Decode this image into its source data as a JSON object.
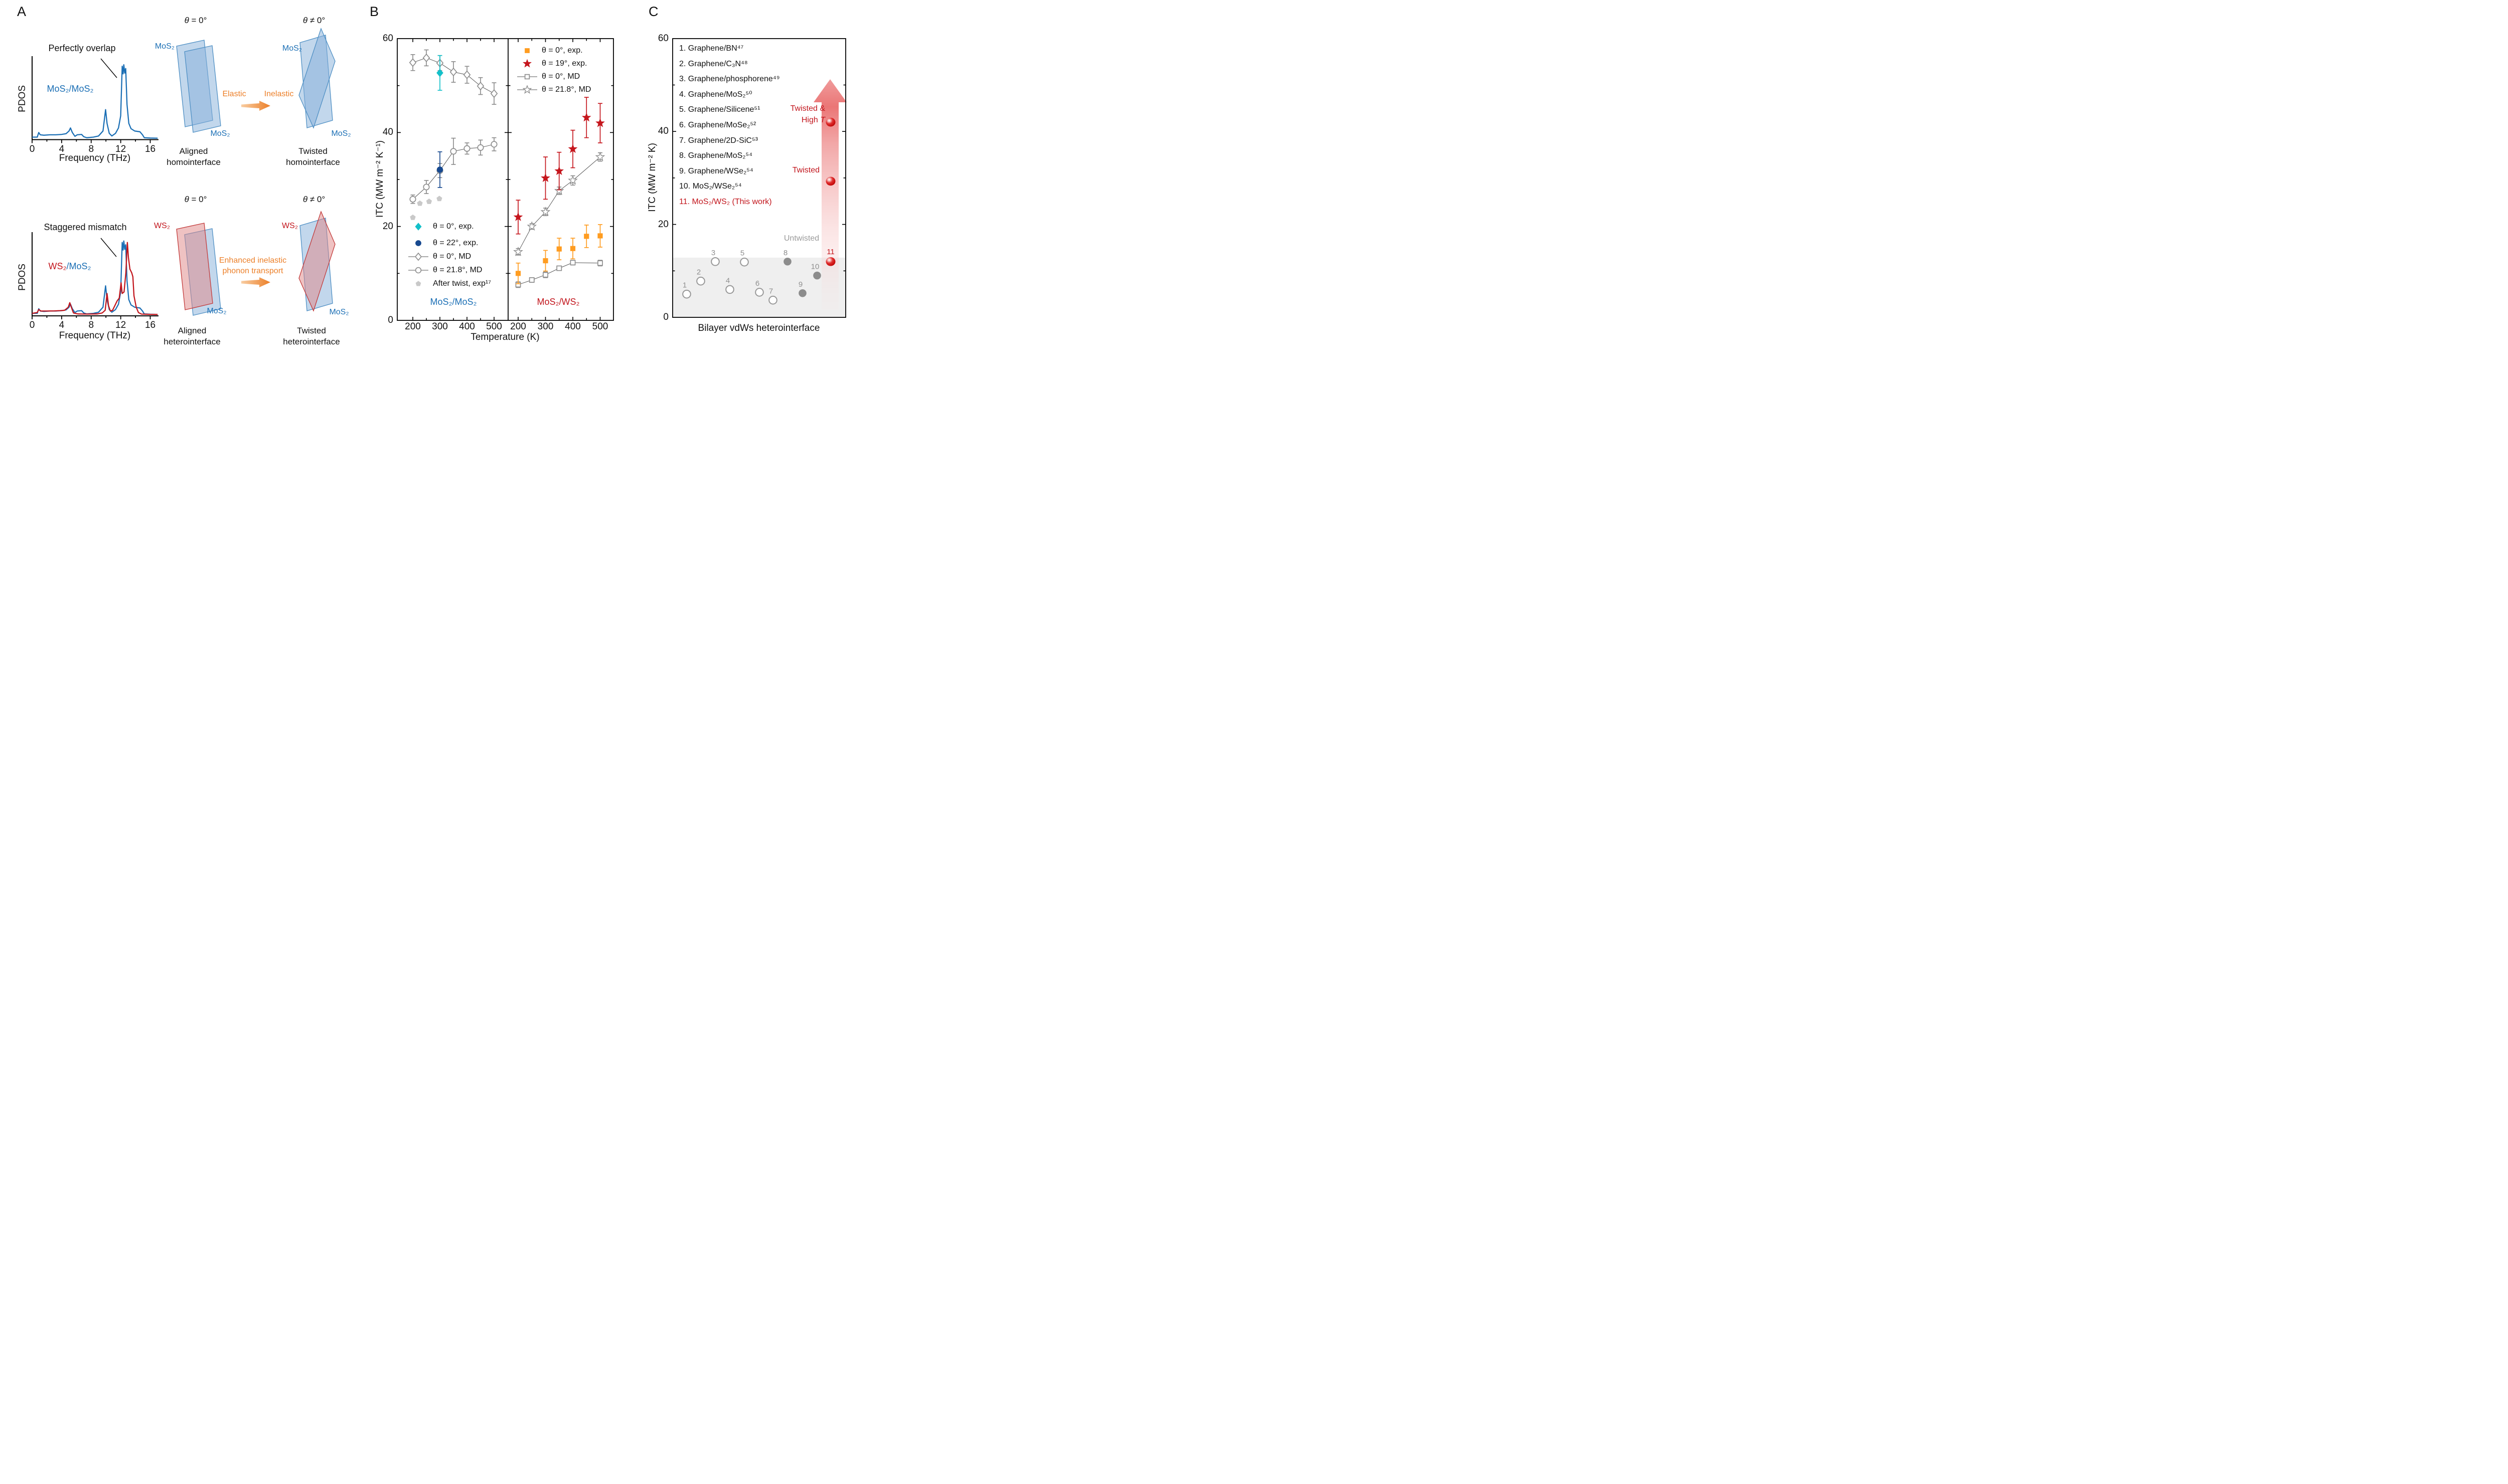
{
  "colors": {
    "mos2_blue": "#1B6FB5",
    "ws2_red": "#C2151C",
    "orange_accent": "#EC7F28",
    "cyan_exp": "#13C0C9",
    "navy_exp": "#17498F",
    "orange_exp": "#FF9C20",
    "red_exp": "#C5161D",
    "gray_marker": "#8E8E8E",
    "light_gray_pentagon": "#C9C9C9",
    "untwisted_gray": "#9A9A9A",
    "band_gray": "#EFEFEF",
    "layer_blue_fill": "rgba(133,176,217,0.50)",
    "layer_blue_stroke": "#4E8FC4",
    "layer_red_fill": "rgba(224,134,134,0.50)",
    "layer_red_stroke": "#C23A3A"
  },
  "panels": {
    "a": {
      "label": "A",
      "theta_aligned": {
        "sym": "θ",
        "rest": " = 0°"
      },
      "theta_twisted": {
        "sym": "θ",
        "rest": " ≠ 0°"
      },
      "elastic": "Elastic",
      "inelastic": "Inelastic",
      "enhanced": [
        "Enhanced inelastic",
        "phonon transport"
      ],
      "layer_mos2": "MoS₂",
      "layer_ws2": "WS₂",
      "pdos_hetero_label": {
        "ws2": "WS₂",
        "rest": "/MoS₂"
      },
      "captions": {
        "aligned_homo": [
          "Aligned",
          "homointerface"
        ],
        "twisted_homo": [
          "Twisted",
          "homointerface"
        ],
        "aligned_hetero": [
          "Aligned",
          "heterointerface"
        ],
        "twisted_hetero": [
          "Twisted",
          "heterointerface"
        ]
      }
    },
    "b": {
      "label": "B"
    },
    "c": {
      "label": "C",
      "items": [
        "1. Graphene/BN⁴⁷",
        "2. Graphene/C₃N⁴⁸",
        "3. Graphene/phosphorene⁴⁹",
        "4. Graphene/MoS₂⁵⁰",
        "5. Graphene/Silicene⁵¹",
        "6. Graphene/MoSe₂⁵²",
        "7. Graphene/2D-SiC⁵³",
        "8. Graphene/MoS₂⁵⁴",
        "9. Graphene/WSe₂⁵⁴",
        "10. MoS₂/WSe₂⁵⁴",
        "11. MoS₂/WS₂ (This work)"
      ]
    }
  },
  "chart_data": [
    {
      "id": "pdos-homointerface",
      "type": "line",
      "xlabel": "Frequency (THz)",
      "ylabel": "PDOS",
      "xlim": [
        0,
        17
      ],
      "xticks": [
        0,
        4,
        8,
        12,
        16
      ],
      "annotation": "Perfectly overlap",
      "series": [
        {
          "name": "MoS₂/MoS₂",
          "color": "#1B6FB5",
          "points": [
            [
              0,
              0.02
            ],
            [
              0.7,
              0.02
            ],
            [
              0.9,
              0.08
            ],
            [
              1.1,
              0.05
            ],
            [
              1.6,
              0.045
            ],
            [
              2.4,
              0.05
            ],
            [
              3.2,
              0.05
            ],
            [
              4.0,
              0.055
            ],
            [
              4.6,
              0.065
            ],
            [
              5.0,
              0.1
            ],
            [
              5.2,
              0.14
            ],
            [
              5.45,
              0.08
            ],
            [
              5.8,
              0.03
            ],
            [
              6.1,
              0.05
            ],
            [
              6.7,
              0.055
            ],
            [
              7.0,
              0.025
            ],
            [
              7.4,
              0.012
            ],
            [
              8.3,
              0.02
            ],
            [
              9.0,
              0.035
            ],
            [
              9.6,
              0.1
            ],
            [
              9.95,
              0.38
            ],
            [
              10.15,
              0.2
            ],
            [
              10.45,
              0.07
            ],
            [
              10.8,
              0.035
            ],
            [
              11.3,
              0.07
            ],
            [
              11.7,
              0.14
            ],
            [
              12.0,
              0.3
            ],
            [
              12.2,
              0.95
            ],
            [
              12.32,
              0.85
            ],
            [
              12.42,
              0.97
            ],
            [
              12.55,
              0.86
            ],
            [
              12.68,
              0.92
            ],
            [
              12.85,
              0.45
            ],
            [
              13.1,
              0.2
            ],
            [
              13.4,
              0.13
            ],
            [
              13.9,
              0.1
            ],
            [
              14.6,
              0.09
            ],
            [
              14.95,
              0.05
            ],
            [
              15.2,
              0.012
            ],
            [
              16.0,
              0.008
            ],
            [
              17,
              0.006
            ]
          ]
        }
      ]
    },
    {
      "id": "pdos-heterointerface",
      "type": "line",
      "xlabel": "Frequency (THz)",
      "ylabel": "PDOS",
      "xlim": [
        0,
        17
      ],
      "xticks": [
        0,
        4,
        8,
        12,
        16
      ],
      "annotation": "Staggered mismatch",
      "series": [
        {
          "name": "MoS₂",
          "color": "#1B6FB5",
          "points": [
            [
              0,
              0.02
            ],
            [
              0.7,
              0.02
            ],
            [
              0.9,
              0.08
            ],
            [
              1.1,
              0.05
            ],
            [
              1.6,
              0.045
            ],
            [
              2.4,
              0.05
            ],
            [
              3.2,
              0.05
            ],
            [
              4.0,
              0.055
            ],
            [
              4.6,
              0.065
            ],
            [
              5.0,
              0.1
            ],
            [
              5.2,
              0.14
            ],
            [
              5.45,
              0.08
            ],
            [
              5.8,
              0.03
            ],
            [
              6.1,
              0.05
            ],
            [
              6.7,
              0.055
            ],
            [
              7.0,
              0.025
            ],
            [
              7.4,
              0.012
            ],
            [
              8.3,
              0.02
            ],
            [
              9.0,
              0.035
            ],
            [
              9.6,
              0.1
            ],
            [
              9.95,
              0.38
            ],
            [
              10.15,
              0.2
            ],
            [
              10.45,
              0.07
            ],
            [
              10.8,
              0.035
            ],
            [
              11.3,
              0.07
            ],
            [
              11.7,
              0.14
            ],
            [
              12.0,
              0.3
            ],
            [
              12.2,
              0.95
            ],
            [
              12.32,
              0.85
            ],
            [
              12.42,
              0.97
            ],
            [
              12.55,
              0.86
            ],
            [
              12.68,
              0.92
            ],
            [
              12.85,
              0.45
            ],
            [
              13.1,
              0.2
            ],
            [
              13.4,
              0.13
            ],
            [
              13.9,
              0.1
            ],
            [
              14.6,
              0.09
            ],
            [
              14.95,
              0.05
            ],
            [
              15.2,
              0.012
            ],
            [
              16.0,
              0.008
            ],
            [
              17,
              0.006
            ]
          ]
        },
        {
          "name": "WS₂",
          "color": "#C2151C",
          "points": [
            [
              0,
              0.02
            ],
            [
              0.7,
              0.03
            ],
            [
              0.9,
              0.07
            ],
            [
              1.2,
              0.05
            ],
            [
              2.0,
              0.05
            ],
            [
              3.0,
              0.052
            ],
            [
              3.8,
              0.055
            ],
            [
              4.4,
              0.06
            ],
            [
              4.9,
              0.1
            ],
            [
              5.1,
              0.16
            ],
            [
              5.35,
              0.09
            ],
            [
              5.6,
              0.025
            ],
            [
              6.2,
              0.012
            ],
            [
              7.5,
              0.01
            ],
            [
              8.8,
              0.012
            ],
            [
              9.5,
              0.025
            ],
            [
              9.9,
              0.06
            ],
            [
              10.15,
              0.28
            ],
            [
              10.35,
              0.12
            ],
            [
              10.6,
              0.05
            ],
            [
              10.9,
              0.06
            ],
            [
              11.2,
              0.12
            ],
            [
              11.5,
              0.18
            ],
            [
              11.8,
              0.22
            ],
            [
              12.05,
              0.42
            ],
            [
              12.2,
              0.28
            ],
            [
              12.45,
              0.3
            ],
            [
              12.7,
              0.55
            ],
            [
              12.9,
              0.95
            ],
            [
              13.05,
              0.75
            ],
            [
              13.25,
              0.6
            ],
            [
              13.5,
              0.55
            ],
            [
              13.65,
              0.5
            ],
            [
              13.8,
              0.25
            ],
            [
              14.1,
              0.1
            ],
            [
              14.4,
              0.03
            ],
            [
              14.8,
              0.01
            ],
            [
              16,
              0.006
            ],
            [
              17,
              0.005
            ]
          ]
        }
      ]
    },
    {
      "id": "itc-vs-temperature-mos2-mos2",
      "type": "scatter",
      "title": "MoS₂/MoS₂",
      "xlabel": "Temperature (K)",
      "ylabel": "ITC (MW m⁻² K⁻¹)",
      "xlim": [
        148,
        552
      ],
      "ylim": [
        0,
        60
      ],
      "xticks": [
        200,
        300,
        400,
        500
      ],
      "yticks": [
        0,
        20,
        40,
        60
      ],
      "series": [
        {
          "label": "θ = 0°, exp.",
          "marker": "diamond",
          "fill": "solid",
          "color": "#13C0C9",
          "line": false,
          "x": [
            300
          ],
          "y": [
            52.7
          ],
          "err": [
            3.7
          ]
        },
        {
          "label": "θ = 22°, exp.",
          "marker": "circle",
          "fill": "solid",
          "color": "#17498F",
          "line": false,
          "x": [
            300
          ],
          "y": [
            32.1
          ],
          "err": [
            3.8
          ]
        },
        {
          "label": "θ = 0°, MD",
          "marker": "diamond",
          "fill": "open",
          "color": "#8E8E8E",
          "line": true,
          "x": [
            200,
            250,
            300,
            350,
            400,
            450,
            500
          ],
          "y": [
            54.9,
            55.9,
            54.8,
            52.9,
            52.3,
            49.9,
            48.3
          ],
          "err": [
            1.7,
            1.7,
            1.6,
            2.2,
            1.8,
            1.8,
            2.3
          ]
        },
        {
          "label": "θ = 21.8°, MD",
          "marker": "circle",
          "fill": "open",
          "color": "#8E8E8E",
          "line": true,
          "x": [
            200,
            250,
            300,
            350,
            400,
            450,
            500
          ],
          "y": [
            25.8,
            28.4,
            31.9,
            36.0,
            36.6,
            36.8,
            37.5
          ],
          "err": [
            0.9,
            1.4,
            1.5,
            2.8,
            1.2,
            1.6,
            1.4
          ]
        },
        {
          "label": "After twist, exp¹⁷",
          "marker": "pentagon",
          "fill": "solid",
          "color": "#C9C9C9",
          "line": false,
          "x": [
            200,
            226,
            260,
            298
          ],
          "y": [
            21.9,
            24.9,
            25.3,
            25.9
          ],
          "err": null
        }
      ]
    },
    {
      "id": "itc-vs-temperature-mos2-ws2",
      "type": "scatter",
      "title": "MoS₂/WS₂",
      "xlabel": "Temperature (K)",
      "ylabel": "ITC (MW m⁻² K⁻¹)",
      "xlim": [
        148,
        552
      ],
      "ylim": [
        0,
        60
      ],
      "xticks": [
        200,
        300,
        400,
        500
      ],
      "yticks": [
        0,
        20,
        40,
        60
      ],
      "series": [
        {
          "label": "θ = 0°, exp.",
          "marker": "square",
          "fill": "solid",
          "color": "#FF9C20",
          "line": false,
          "x": [
            200,
            300,
            350,
            400,
            450,
            500
          ],
          "y": [
            10.0,
            12.7,
            15.2,
            15.3,
            17.9,
            18.0
          ],
          "err": [
            2.2,
            2.2,
            2.3,
            2.2,
            2.4,
            2.4
          ]
        },
        {
          "label": "θ = 19°, exp.",
          "marker": "star",
          "fill": "solid",
          "color": "#C5161D",
          "line": false,
          "x": [
            200,
            300,
            350,
            400,
            450,
            500
          ],
          "y": [
            22.0,
            30.3,
            31.8,
            36.5,
            43.2,
            42.0
          ],
          "err": [
            3.6,
            4.5,
            4.0,
            4.0,
            4.3,
            4.2
          ]
        },
        {
          "label": "θ = 0°, MD",
          "marker": "square",
          "fill": "open",
          "color": "#8E8E8E",
          "line": true,
          "x": [
            200,
            250,
            300,
            350,
            400,
            500
          ],
          "y": [
            7.6,
            8.6,
            9.7,
            11.1,
            12.3,
            12.2
          ],
          "err": [
            0.6,
            0.5,
            0.6,
            0.4,
            0.5,
            0.6
          ]
        },
        {
          "label": "θ = 21.8°, MD",
          "marker": "star",
          "fill": "open",
          "color": "#8E8E8E",
          "line": true,
          "x": [
            200,
            250,
            300,
            350,
            400,
            500
          ],
          "y": [
            14.6,
            20.0,
            23.1,
            27.6,
            29.8,
            34.8
          ],
          "err": [
            0.7,
            0.6,
            0.8,
            0.8,
            1.0,
            0.9
          ]
        }
      ]
    },
    {
      "id": "itc-ranking-bilayer-interfaces",
      "type": "scatter",
      "xlabel": "Bilayer vdWs heterointerface",
      "ylabel": "ITC (MW m⁻² K)",
      "ylim": [
        0,
        60
      ],
      "yticks": [
        0,
        20,
        40,
        60
      ],
      "shaded_band_max": 12.85,
      "points": [
        {
          "label": "1",
          "value": 5.0,
          "style": "open"
        },
        {
          "label": "2",
          "value": 7.8,
          "style": "open"
        },
        {
          "label": "3",
          "value": 12.0,
          "style": "open"
        },
        {
          "label": "4",
          "value": 6.0,
          "style": "open"
        },
        {
          "label": "5",
          "value": 11.9,
          "style": "open"
        },
        {
          "label": "6",
          "value": 5.4,
          "style": "open"
        },
        {
          "label": "7",
          "value": 3.7,
          "style": "open"
        },
        {
          "label": "8",
          "value": 12.0,
          "style": "filled"
        },
        {
          "label": "9",
          "value": 5.2,
          "style": "filled"
        },
        {
          "label": "10",
          "value": 9.0,
          "style": "filled"
        },
        {
          "label": "11",
          "value": 12.0,
          "style": "red-sphere"
        },
        {
          "label": "11-twisted",
          "value": 29.3,
          "style": "red-sphere"
        },
        {
          "label": "11-twisted-high-T",
          "value": 42.0,
          "style": "red-sphere"
        }
      ],
      "annotations": {
        "untwisted": "Untwisted",
        "twisted": "Twisted",
        "twisted_high_T_line1": "Twisted &",
        "twisted_high_T_line2a": "High ",
        "twisted_high_T_line2b": "T"
      }
    }
  ]
}
